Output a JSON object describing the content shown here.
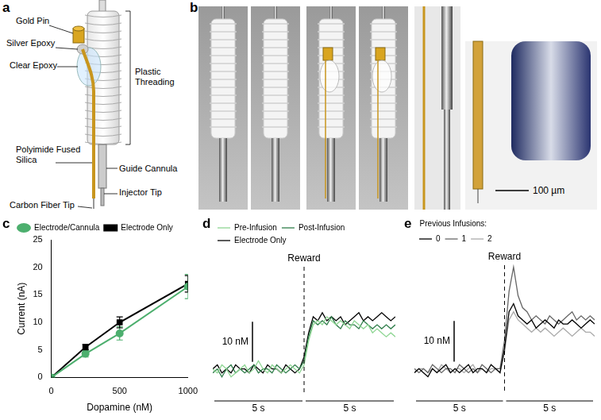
{
  "panel_a": {
    "letter": "a",
    "labels": {
      "gold_pin": "Gold Pin",
      "silver_epoxy": "Silver Epoxy",
      "clear_epoxy": "Clear Epoxy",
      "polyimide": "Polyimide Fused Silica",
      "carbon_fiber": "Carbon Fiber Tip",
      "threading": "Plastic Threading",
      "guide_cannula": "Guide Cannula",
      "injector": "Injector Tip"
    }
  },
  "panel_b": {
    "letter": "b",
    "scale_bar": "100 µm"
  },
  "chart_data": [
    {
      "panel": "c",
      "type": "line",
      "x_label": "Dopamine (nM)",
      "y_label": "Current (nA)",
      "x": [
        0,
        250,
        500,
        1000
      ],
      "xlim": [
        0,
        1000
      ],
      "xticks": [
        0,
        500,
        1000
      ],
      "ylim": [
        0,
        25
      ],
      "yticks": [
        0,
        5,
        10,
        15,
        20,
        25
      ],
      "grid": false,
      "legend": "top-left",
      "series": [
        {
          "name": "Electrode/Cannula",
          "color": "#4daf6e",
          "marker": "circle",
          "values": [
            0,
            4.3,
            8,
            16.5
          ],
          "errors": [
            0,
            0.6,
            1.2,
            2.2
          ]
        },
        {
          "name": "Electrode Only",
          "color": "#000000",
          "marker": "square",
          "values": [
            0,
            5.5,
            10,
            17
          ],
          "errors": [
            0,
            0.5,
            1,
            1.5
          ]
        }
      ]
    },
    {
      "panel": "d",
      "type": "line",
      "x": [
        -5,
        -4.75,
        -4.5,
        -4.25,
        -4,
        -3.75,
        -3.5,
        -3.25,
        -3,
        -2.75,
        -2.5,
        -2.25,
        -2,
        -1.75,
        -1.5,
        -1.25,
        -1,
        -0.75,
        -0.5,
        -0.25,
        0,
        0.25,
        0.5,
        0.75,
        1,
        1.25,
        1.5,
        1.75,
        2,
        2.25,
        2.5,
        2.75,
        3,
        3.25,
        3.5,
        3.75,
        4,
        4.25,
        4.5,
        4.75,
        5
      ],
      "xlim": [
        -5,
        5
      ],
      "ylim": [
        -5,
        30
      ],
      "tick_labels": false,
      "grid": false,
      "legend": "top-left",
      "annotations": [
        {
          "x": 0,
          "label": "Reward"
        }
      ],
      "scale_bar": {
        "value": 10,
        "label": "10 nM"
      },
      "time_bars": [
        {
          "from": -5,
          "to": 0,
          "label": "5 s"
        },
        {
          "from": 0,
          "to": 5,
          "label": "5 s"
        }
      ],
      "series": [
        {
          "name": "Pre-Infusion",
          "color": "#8fd694",
          "values": [
            1,
            0,
            2,
            1,
            -1,
            0,
            1,
            2,
            0,
            1,
            3,
            1,
            0,
            2,
            1,
            0,
            1,
            2,
            1,
            0,
            2,
            8,
            12,
            13,
            12,
            14,
            13,
            12,
            13,
            12,
            11,
            13,
            12,
            11,
            12,
            10,
            11,
            10,
            9,
            10,
            9
          ]
        },
        {
          "name": "Post-Infusion",
          "color": "#2f7d4a",
          "values": [
            0,
            1,
            -1,
            1,
            2,
            0,
            1,
            0,
            1,
            2,
            0,
            1,
            1,
            0,
            2,
            1,
            0,
            1,
            2,
            1,
            3,
            9,
            13,
            12,
            13,
            12,
            14,
            12,
            11,
            13,
            12,
            12,
            11,
            13,
            12,
            11,
            12,
            11,
            12,
            11,
            12
          ]
        },
        {
          "name": "Electrode Only",
          "color": "#000000",
          "values": [
            1,
            2,
            0,
            1,
            0,
            2,
            1,
            1,
            0,
            2,
            1,
            0,
            2,
            1,
            1,
            0,
            2,
            1,
            0,
            1,
            4,
            10,
            14,
            13,
            15,
            13,
            14,
            13,
            14,
            12,
            13,
            14,
            15,
            13,
            14,
            13,
            14,
            15,
            14,
            13,
            14
          ]
        }
      ]
    },
    {
      "panel": "e",
      "type": "line",
      "x": [
        -5,
        -4.75,
        -4.5,
        -4.25,
        -4,
        -3.75,
        -3.5,
        -3.25,
        -3,
        -2.75,
        -2.5,
        -2.25,
        -2,
        -1.75,
        -1.5,
        -1.25,
        -1,
        -0.75,
        -0.5,
        -0.25,
        0,
        0.25,
        0.5,
        0.75,
        1,
        1.25,
        1.5,
        1.75,
        2,
        2.25,
        2.5,
        2.75,
        3,
        3.25,
        3.5,
        3.75,
        4,
        4.25,
        4.5,
        4.75,
        5
      ],
      "xlim": [
        -5,
        5
      ],
      "ylim": [
        -5,
        30
      ],
      "tick_labels": false,
      "grid": false,
      "legend": "top-left",
      "legend_title": "Previous Infusions:",
      "annotations": [
        {
          "x": 0,
          "label": "Reward"
        }
      ],
      "scale_bar": {
        "value": 10,
        "label": "10 nM"
      },
      "time_bars": [
        {
          "from": -5,
          "to": 0,
          "label": "5 s"
        },
        {
          "from": 0,
          "to": 5,
          "label": "5 s"
        }
      ],
      "series": [
        {
          "name": "0",
          "color": "#000000",
          "values": [
            0,
            1,
            0,
            -1,
            1,
            0,
            1,
            2,
            0,
            1,
            0,
            1,
            2,
            0,
            1,
            1,
            0,
            2,
            1,
            0,
            6,
            15,
            17,
            14,
            13,
            12,
            13,
            11,
            12,
            13,
            12,
            11,
            13,
            12,
            12,
            13,
            12,
            11,
            12,
            13,
            12
          ]
        },
        {
          "name": "1",
          "color": "#666666",
          "values": [
            1,
            0,
            1,
            0,
            2,
            1,
            0,
            1,
            1,
            0,
            2,
            1,
            0,
            1,
            0,
            2,
            1,
            0,
            1,
            1,
            8,
            20,
            26,
            19,
            16,
            15,
            13,
            14,
            13,
            12,
            14,
            13,
            12,
            13,
            14,
            15,
            13,
            14,
            13,
            14,
            13
          ]
        },
        {
          "name": "2",
          "color": "#aaaaaa",
          "values": [
            0,
            1,
            1,
            0,
            1,
            0,
            2,
            1,
            0,
            1,
            1,
            0,
            1,
            2,
            0,
            1,
            0,
            1,
            1,
            0,
            5,
            13,
            15,
            13,
            12,
            11,
            10,
            11,
            10,
            11,
            10,
            9,
            10,
            11,
            10,
            9,
            10,
            11,
            10,
            10,
            9
          ]
        }
      ]
    }
  ]
}
